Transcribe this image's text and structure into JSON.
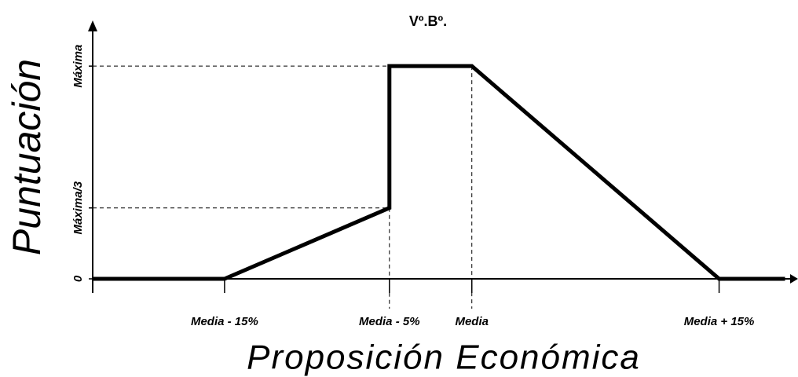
{
  "chart_data": {
    "type": "line",
    "title": "Vº.Bº.",
    "x_label": "Proposición Económica",
    "y_label": "Puntuación",
    "series": [
      {
        "color": "#000000",
        "x": [
          -23,
          -15,
          -5,
          -5,
          0,
          15,
          19
        ],
        "values": [
          0,
          0,
          0.3333,
          1,
          1,
          0,
          0
        ]
      }
    ],
    "xlim": [
      -23,
      19.5
    ],
    "ylim": [
      0,
      1.2
    ],
    "xticks": [
      {
        "value": -15,
        "label": "Media - 15%"
      },
      {
        "value": -5,
        "label": "Media - 5%"
      },
      {
        "value": 0,
        "label": "Media"
      },
      {
        "value": 15,
        "label": "Media + 15%"
      }
    ],
    "yticks": [
      0,
      {
        "value": 0.3333,
        "label": "Máxima/3"
      },
      {
        "value": 1,
        "label": "Máxima"
      }
    ],
    "guides": true
  }
}
